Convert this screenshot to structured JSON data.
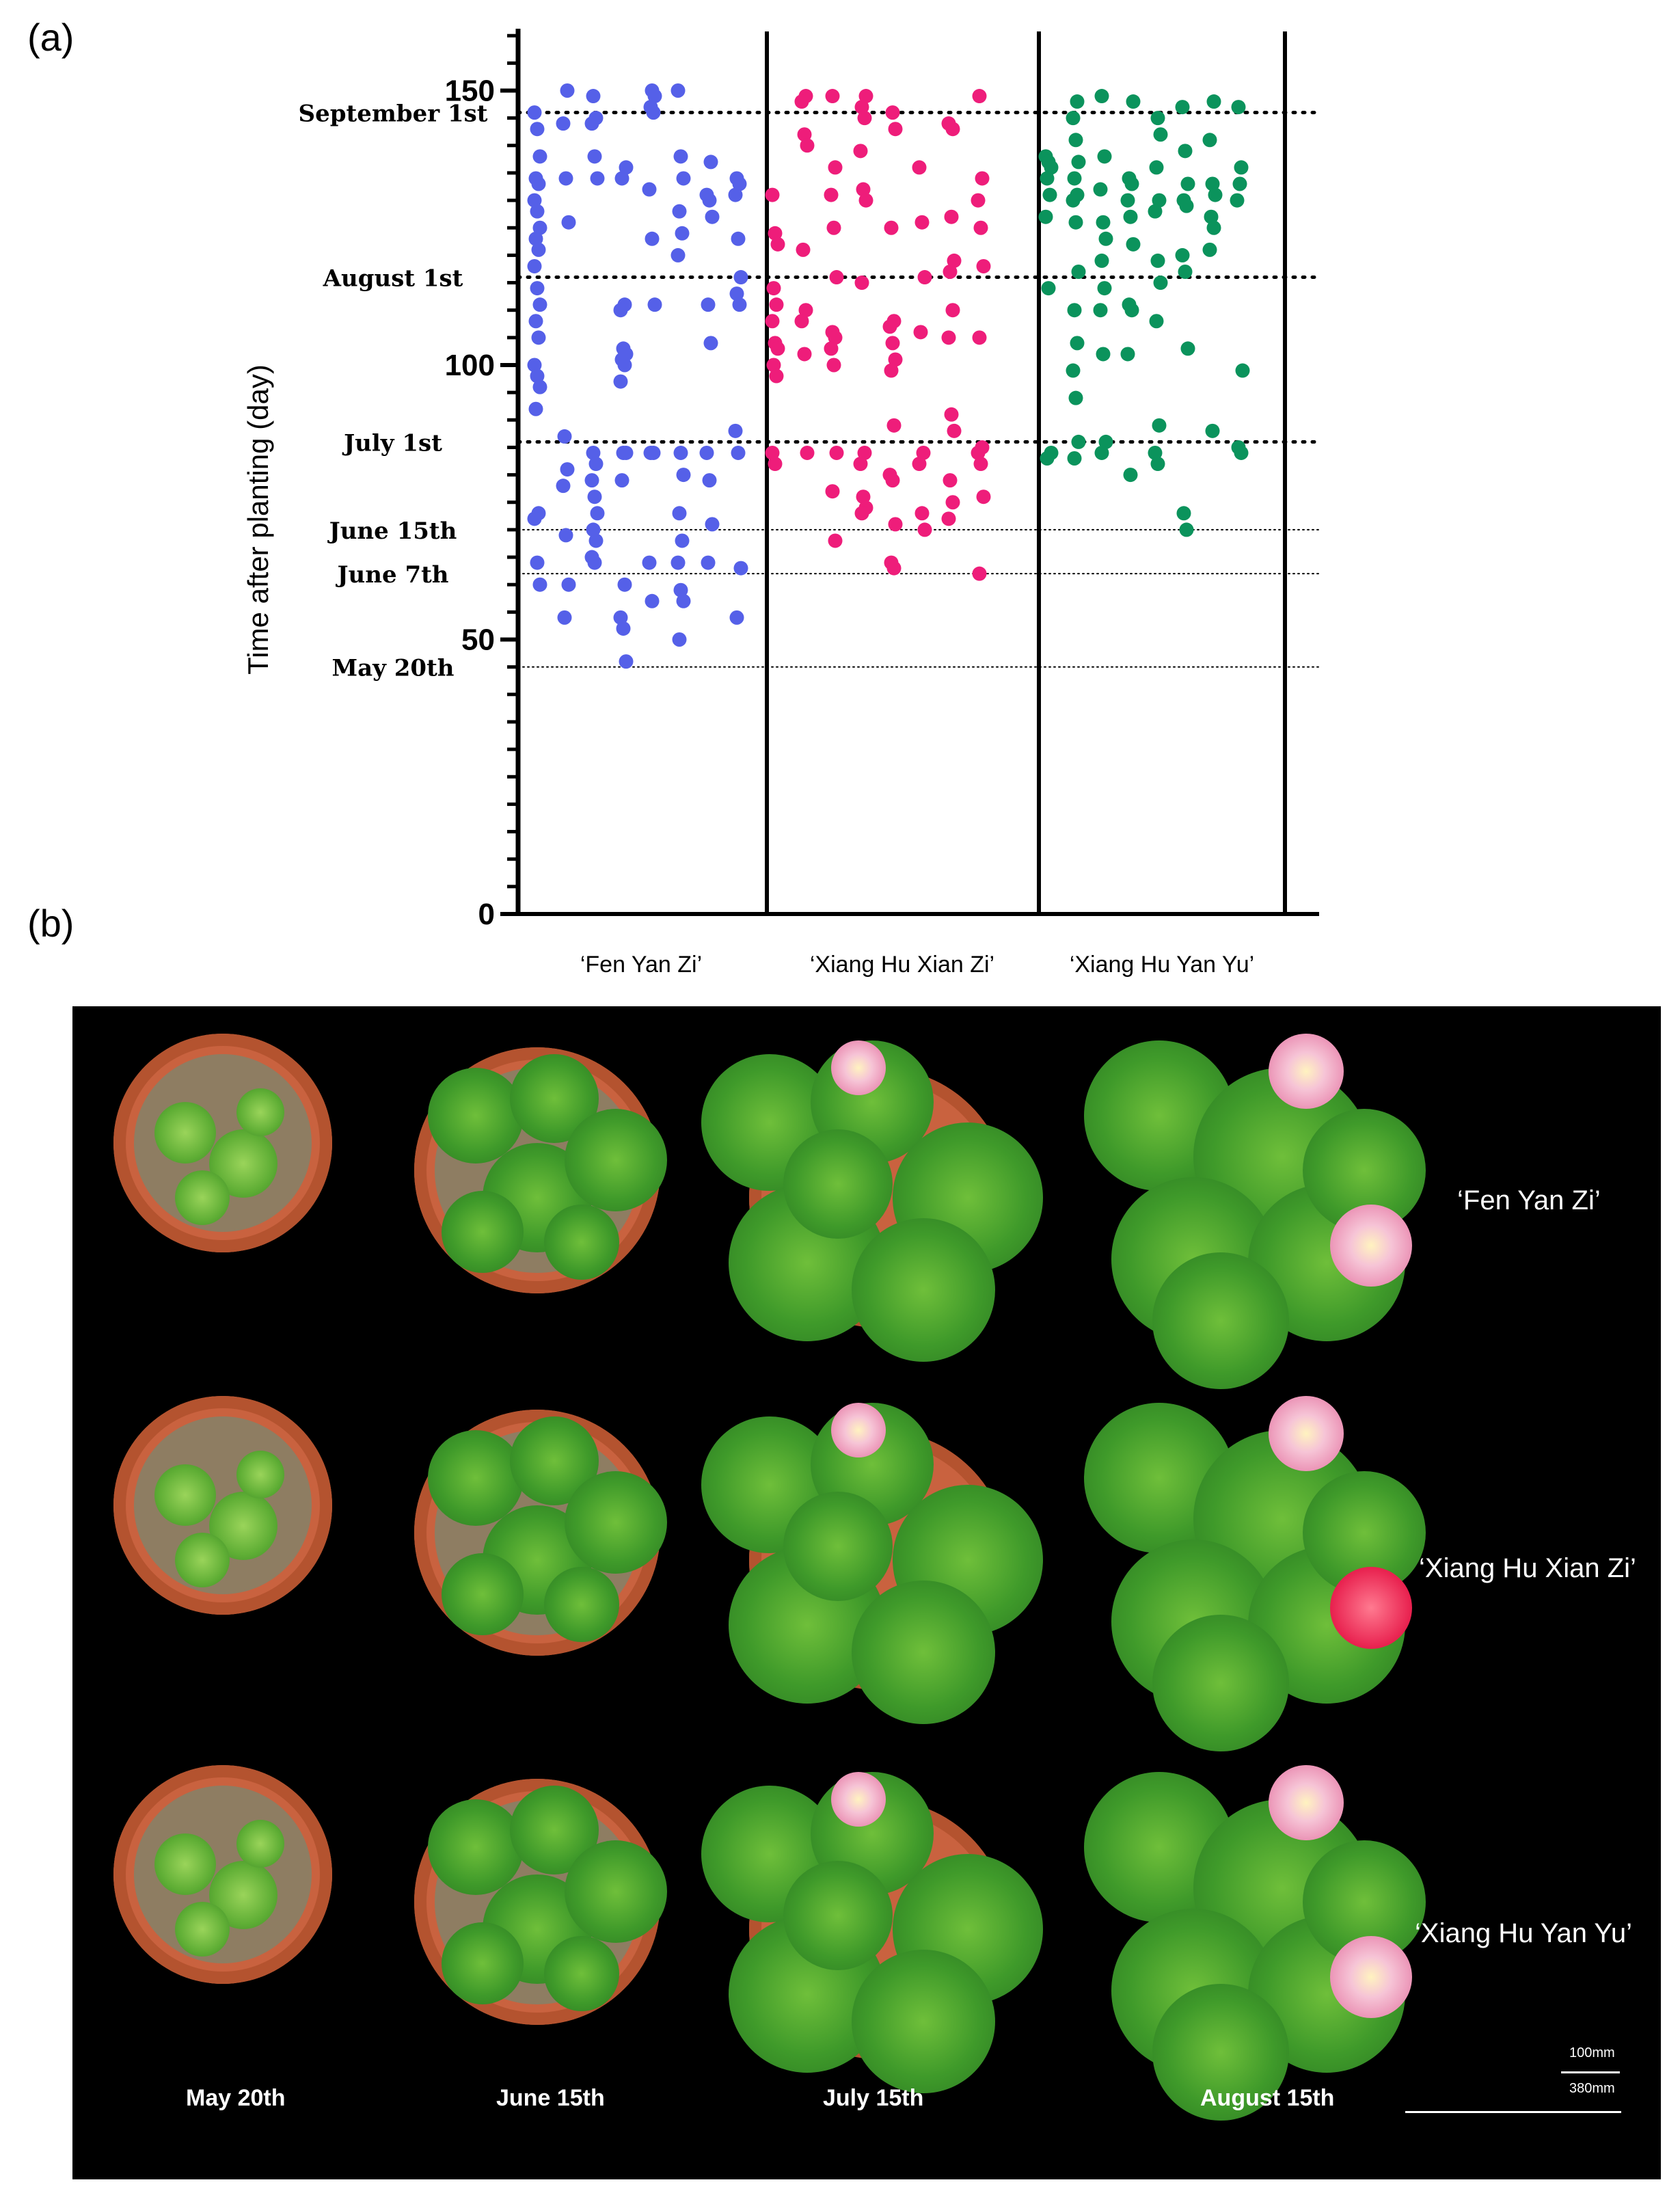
{
  "panel_a_label": "(a)",
  "panel_b_label": "(b)",
  "chart_data": {
    "type": "scatter",
    "title": "",
    "xlabel": "",
    "ylabel": "Time after planting (day)",
    "ylim": [
      0,
      160
    ],
    "yticks": [
      0,
      50,
      100,
      150
    ],
    "grid": false,
    "legend": "none",
    "categories": [
      "‘Fen Yan Zi’",
      "‘Xiang Hu Xian Zi’",
      "‘Xiang Hu Yan Yu’"
    ],
    "reference_lines": [
      {
        "label": "September 1st",
        "y": 146,
        "style": "bold-dotted"
      },
      {
        "label": "August 1st",
        "y": 116,
        "style": "bold-dotted"
      },
      {
        "label": "July 1st",
        "y": 86,
        "style": "bold-dotted"
      },
      {
        "label": "June 15th",
        "y": 70,
        "style": "thin-dotted"
      },
      {
        "label": "June 7th",
        "y": 62,
        "style": "thin-dotted"
      },
      {
        "label": "May 20th",
        "y": 45,
        "style": "thin-dotted"
      }
    ],
    "series": [
      {
        "color": "#5560e8",
        "columns": [
          [
            146,
            143,
            138,
            134,
            133,
            130,
            128,
            125,
            123,
            121,
            118,
            114,
            111,
            108,
            105,
            100,
            98,
            96,
            92,
            73,
            72,
            64,
            60
          ],
          [
            150,
            144,
            134,
            126,
            87,
            81,
            78,
            69,
            60,
            54
          ],
          [
            149,
            145,
            144,
            138,
            134,
            84,
            82,
            79,
            76,
            73,
            70,
            68,
            65,
            64
          ],
          [
            136,
            134,
            111,
            110,
            103,
            102,
            101,
            100,
            97,
            84,
            84,
            79,
            60,
            54,
            52,
            46
          ],
          [
            150,
            149,
            147,
            146,
            132,
            123,
            111,
            84,
            84,
            64,
            57
          ],
          [
            150,
            138,
            134,
            128,
            124,
            120,
            84,
            80,
            73,
            68,
            64,
            59,
            57,
            50
          ],
          [
            137,
            131,
            130,
            127,
            111,
            104,
            84,
            79,
            71,
            64
          ],
          [
            134,
            133,
            131,
            123,
            116,
            113,
            111,
            88,
            84,
            63,
            54
          ]
        ]
      },
      {
        "color": "#ee1d7a",
        "columns": [
          [
            131,
            124,
            122,
            114,
            111,
            108,
            104,
            103,
            100,
            98,
            84,
            82
          ],
          [
            149,
            148,
            142,
            140,
            121,
            110,
            108,
            102,
            84
          ],
          [
            149,
            136,
            131,
            125,
            116,
            106,
            105,
            103,
            100,
            84,
            77,
            68
          ],
          [
            149,
            147,
            145,
            139,
            132,
            130,
            115,
            84,
            82,
            76,
            74,
            73
          ],
          [
            146,
            143,
            125,
            108,
            107,
            104,
            101,
            99,
            89,
            80,
            79,
            71,
            64,
            63
          ],
          [
            136,
            126,
            116,
            106,
            84,
            82,
            73,
            70
          ],
          [
            143,
            144,
            127,
            119,
            117,
            110,
            105,
            91,
            88,
            79,
            75,
            72
          ],
          [
            149,
            134,
            130,
            125,
            118,
            105,
            85,
            84,
            82,
            76,
            62
          ]
        ]
      },
      {
        "color": "#0b935c",
        "columns": [
          [
            138,
            137,
            136,
            134,
            131,
            127,
            114,
            84,
            83
          ],
          [
            148,
            145,
            141,
            137,
            134,
            131,
            130,
            126,
            117,
            110,
            104,
            99,
            94,
            86,
            83
          ],
          [
            149,
            138,
            132,
            126,
            123,
            119,
            114,
            110,
            102,
            86,
            84
          ],
          [
            148,
            134,
            133,
            130,
            127,
            122,
            111,
            110,
            102,
            80
          ],
          [
            145,
            142,
            136,
            130,
            128,
            119,
            115,
            108,
            89,
            84,
            82
          ],
          [
            147,
            139,
            133,
            130,
            129,
            120,
            117,
            103,
            73,
            70
          ],
          [
            148,
            141,
            133,
            131,
            127,
            125,
            121,
            88
          ],
          [
            147,
            136,
            130,
            133,
            99,
            85,
            84
          ]
        ]
      }
    ]
  },
  "photo_panel": {
    "row_labels": [
      "‘Fen Yan Zi’",
      "‘Xiang Hu Xian Zi’",
      "‘Xiang Hu Yan Yu’"
    ],
    "col_labels": [
      "May 20th",
      "June 15th",
      "July 15th",
      "August 15th"
    ],
    "scale_small": "100mm",
    "scale_large": "380mm"
  }
}
